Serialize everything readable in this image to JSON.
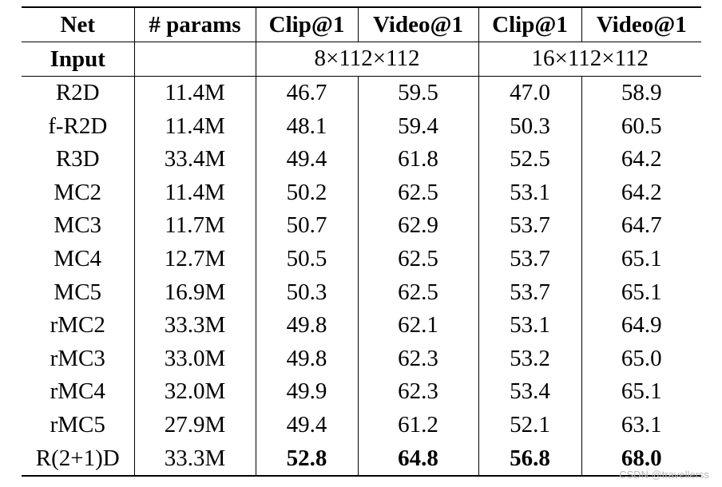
{
  "table": {
    "headers": [
      "Net",
      "# params",
      "Clip@1",
      "Video@1",
      "Clip@1",
      "Video@1"
    ],
    "input_row": {
      "label": "Input",
      "params": "",
      "input_a": "8×112×112",
      "input_b": "16×112×112"
    },
    "rows": [
      [
        "R2D",
        "11.4M",
        "46.7",
        "59.5",
        "47.0",
        "58.9"
      ],
      [
        "f-R2D",
        "11.4M",
        "48.1",
        "59.4",
        "50.3",
        "60.5"
      ],
      [
        "R3D",
        "33.4M",
        "49.4",
        "61.8",
        "52.5",
        "64.2"
      ],
      [
        "MC2",
        "11.4M",
        "50.2",
        "62.5",
        "53.1",
        "64.2"
      ],
      [
        "MC3",
        "11.7M",
        "50.7",
        "62.9",
        "53.7",
        "64.7"
      ],
      [
        "MC4",
        "12.7M",
        "50.5",
        "62.5",
        "53.7",
        "65.1"
      ],
      [
        "MC5",
        "16.9M",
        "50.3",
        "62.5",
        "53.7",
        "65.1"
      ],
      [
        "rMC2",
        "33.3M",
        "49.8",
        "62.1",
        "53.1",
        "64.9"
      ],
      [
        "rMC3",
        "33.0M",
        "49.8",
        "62.3",
        "53.2",
        "65.0"
      ],
      [
        "rMC4",
        "32.0M",
        "49.9",
        "62.3",
        "53.4",
        "65.1"
      ],
      [
        "rMC5",
        "27.9M",
        "49.4",
        "61.2",
        "52.1",
        "63.1"
      ],
      [
        "R(2+1)D",
        "33.3M",
        "52.8",
        "64.8",
        "56.8",
        "68.0"
      ]
    ]
  },
  "watermark": "CSDN @travellerss"
}
